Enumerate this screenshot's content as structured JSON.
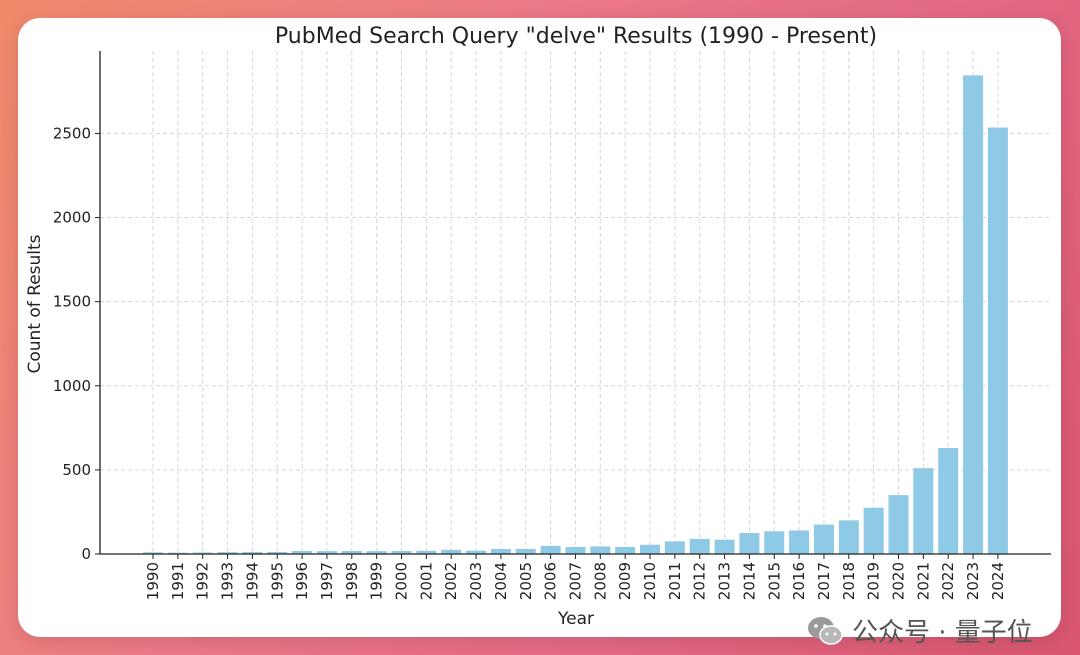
{
  "chart_data": {
    "type": "bar",
    "title": "PubMed Search Query \"delve\" Results (1990 - Present)",
    "xlabel": "Year",
    "ylabel": "Count of Results",
    "categories": [
      "1990",
      "1991",
      "1992",
      "1993",
      "1994",
      "1995",
      "1996",
      "1997",
      "1998",
      "1999",
      "2000",
      "2001",
      "2002",
      "2003",
      "2004",
      "2005",
      "2006",
      "2007",
      "2008",
      "2009",
      "2010",
      "2011",
      "2012",
      "2013",
      "2014",
      "2015",
      "2016",
      "2017",
      "2018",
      "2019",
      "2020",
      "2021",
      "2022",
      "2023",
      "2024"
    ],
    "values": [
      10,
      8,
      9,
      11,
      12,
      12,
      18,
      17,
      18,
      17,
      18,
      19,
      25,
      20,
      30,
      30,
      48,
      42,
      45,
      42,
      55,
      75,
      90,
      85,
      125,
      135,
      140,
      175,
      200,
      275,
      350,
      510,
      630,
      2845,
      2535
    ],
    "ylim": [
      0,
      2990
    ],
    "yticks": [
      0,
      500,
      1000,
      1500,
      2000,
      2500
    ],
    "grid": true,
    "bar_color": "#8ecae6"
  },
  "watermark": {
    "text": "公众号 · 量子位",
    "icon": "wechat-icon"
  }
}
